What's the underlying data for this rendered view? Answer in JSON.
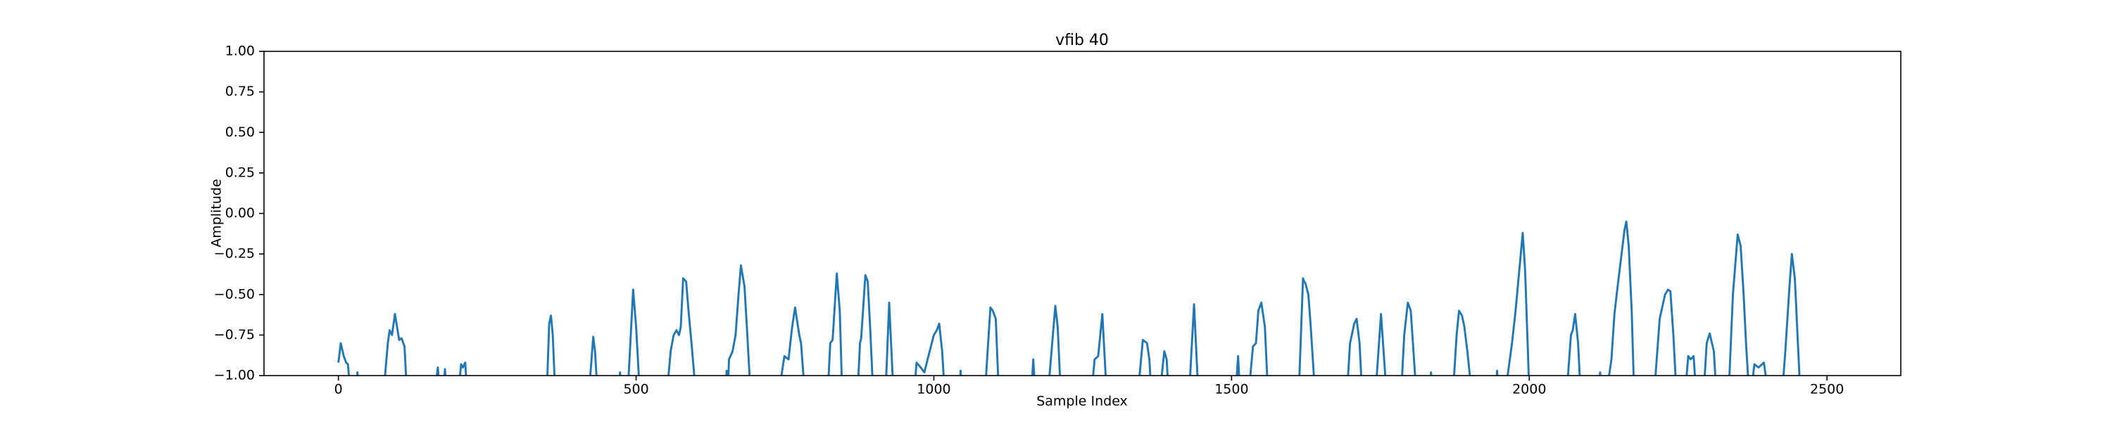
{
  "chart_data": {
    "type": "line",
    "title": "vfib 40",
    "x_label": "Sample Index",
    "y_label": "Amplitude",
    "color": "#1f77b4",
    "xlim": [
      -124.95,
      2623.95
    ],
    "xticks": [
      0,
      500,
      1000,
      1500,
      2000,
      2500
    ],
    "ylim": [
      -1,
      1
    ],
    "yticks": [
      {
        "value": -1,
        "label": "−1.00"
      },
      {
        "value": -0.75,
        "label": "−0.75"
      },
      {
        "value": -0.5,
        "label": "−0.50"
      },
      {
        "value": -0.25,
        "label": "−0.25"
      },
      {
        "value": 0,
        "label": "0.00"
      },
      {
        "value": 0.25,
        "label": "0.25"
      },
      {
        "value": 0.5,
        "label": "0.50"
      },
      {
        "value": 0.75,
        "label": "0.75"
      },
      {
        "value": 1,
        "label": "1.00"
      }
    ],
    "x": [
      0,
      4,
      9,
      13,
      16,
      20,
      30,
      32,
      34,
      76,
      83,
      86,
      90,
      95,
      102,
      106,
      111,
      115,
      162,
      167,
      170,
      176,
      179,
      181,
      202,
      206,
      209,
      213,
      216,
      350,
      354,
      357,
      360,
      364,
      421,
      428,
      431,
      435,
      471,
      473,
      475,
      486,
      495,
      500,
      506,
      552,
      558,
      563,
      568,
      572,
      575,
      577,
      579,
      584,
      588,
      593,
      600,
      650,
      652,
      654,
      656,
      662,
      667,
      672,
      676,
      682,
      686,
      692,
      740,
      749,
      756,
      762,
      767,
      774,
      777,
      783,
      822,
      826,
      830,
      837,
      842,
      846,
      872,
      876,
      878,
      885,
      889,
      893,
      898,
      919,
      925,
      932,
      967,
      971,
      978,
      984,
      993,
      1000,
      1005,
      1009,
      1011,
      1014,
      1018,
      1043,
      1045,
      1047,
      1086,
      1095,
      1099,
      1104,
      1109,
      1164,
      1167,
      1170,
      1192,
      1204,
      1208,
      1213,
      1265,
      1270,
      1276,
      1283,
      1290,
      1343,
      1351,
      1358,
      1362,
      1365,
      1380,
      1387,
      1391,
      1394,
      1429,
      1437,
      1444,
      1507,
      1511,
      1514,
      1529,
      1536,
      1541,
      1545,
      1550,
      1556,
      1561,
      1613,
      1620,
      1622,
      1624,
      1629,
      1633,
      1640,
      1694,
      1699,
      1706,
      1710,
      1715,
      1719,
      1742,
      1751,
      1760,
      1785,
      1790,
      1796,
      1801,
      1810,
      1833,
      1835,
      1837,
      1872,
      1878,
      1882,
      1887,
      1891,
      1896,
      1903,
      1944,
      1946,
      1948,
      1960,
      1971,
      1977,
      1989,
      1993,
      2000,
      2063,
      2070,
      2073,
      2077,
      2082,
      2086,
      2117,
      2119,
      2121,
      2130,
      2138,
      2143,
      2150,
      2160,
      2163,
      2167,
      2172,
      2176,
      2210,
      2219,
      2228,
      2233,
      2237,
      2242,
      2247,
      2262,
      2267,
      2271,
      2276,
      2280,
      2293,
      2298,
      2303,
      2310,
      2314,
      2335,
      2342,
      2350,
      2355,
      2360,
      2364,
      2369,
      2373,
      2378,
      2385,
      2394,
      2401,
      2425,
      2430,
      2437,
      2441,
      2446,
      2455,
      2499
    ],
    "values": [
      -0.92,
      -0.8,
      -0.88,
      -0.92,
      -0.93,
      -1.1,
      -1.1,
      -0.98,
      -1.1,
      -1.1,
      -0.8,
      -0.72,
      -0.75,
      -0.62,
      -0.78,
      -0.77,
      -0.82,
      -1.1,
      -1.1,
      -0.95,
      -1.1,
      -1.1,
      -0.96,
      -1.1,
      -1.1,
      -0.93,
      -0.95,
      -0.92,
      -1.1,
      -1.1,
      -0.68,
      -0.63,
      -0.75,
      -1.1,
      -1.1,
      -0.76,
      -0.85,
      -1.1,
      -1.1,
      -0.98,
      -1.1,
      -1.1,
      -0.47,
      -0.7,
      -1.1,
      -1.1,
      -0.85,
      -0.75,
      -0.72,
      -0.75,
      -0.7,
      -0.55,
      -0.4,
      -0.42,
      -0.6,
      -0.8,
      -1.1,
      -1.1,
      -0.97,
      -1.1,
      -0.9,
      -0.85,
      -0.75,
      -0.5,
      -0.32,
      -0.45,
      -0.7,
      -1.1,
      -1.1,
      -0.88,
      -0.9,
      -0.7,
      -0.58,
      -0.75,
      -0.8,
      -1.1,
      -1.1,
      -0.8,
      -0.78,
      -0.37,
      -0.6,
      -1.1,
      -1.1,
      -0.8,
      -0.77,
      -0.38,
      -0.42,
      -0.7,
      -1.1,
      -1.1,
      -0.55,
      -1.1,
      -1.1,
      -0.92,
      -0.95,
      -0.98,
      -0.85,
      -0.75,
      -0.72,
      -0.68,
      -0.75,
      -0.85,
      -1.1,
      -1.1,
      -0.97,
      -1.1,
      -1.1,
      -0.58,
      -0.6,
      -0.65,
      -1.1,
      -1.1,
      -0.9,
      -1.1,
      -1.1,
      -0.57,
      -0.7,
      -1.1,
      -1.1,
      -0.9,
      -0.88,
      -0.62,
      -1.1,
      -1.1,
      -0.78,
      -0.8,
      -0.9,
      -1.1,
      -1.1,
      -0.85,
      -0.9,
      -1.1,
      -1.1,
      -0.56,
      -1.1,
      -1.1,
      -0.88,
      -1.1,
      -1.1,
      -0.82,
      -0.8,
      -0.6,
      -0.55,
      -0.7,
      -1.1,
      -1.1,
      -0.4,
      -0.42,
      -0.43,
      -0.5,
      -0.7,
      -1.1,
      -1.1,
      -0.8,
      -0.68,
      -0.65,
      -0.8,
      -1.1,
      -1.1,
      -0.62,
      -1.1,
      -1.1,
      -0.75,
      -0.55,
      -0.6,
      -1.1,
      -1.1,
      -0.98,
      -1.1,
      -1.1,
      -0.75,
      -0.6,
      -0.63,
      -0.7,
      -0.85,
      -1.1,
      -1.1,
      -0.97,
      -1.1,
      -1.1,
      -0.8,
      -0.6,
      -0.12,
      -0.35,
      -1.1,
      -1.1,
      -0.75,
      -0.72,
      -0.62,
      -0.8,
      -1.1,
      -1.1,
      -0.98,
      -1.1,
      -1.1,
      -0.9,
      -0.62,
      -0.4,
      -0.1,
      -0.05,
      -0.2,
      -0.6,
      -1.1,
      -1.1,
      -0.65,
      -0.5,
      -0.47,
      -0.48,
      -0.75,
      -1.1,
      -1.1,
      -0.88,
      -0.9,
      -0.88,
      -1.1,
      -1.1,
      -0.8,
      -0.74,
      -0.85,
      -1.1,
      -1.1,
      -0.5,
      -0.13,
      -0.2,
      -0.5,
      -0.8,
      -1.1,
      -1.1,
      -0.93,
      -0.95,
      -0.92,
      -1.1,
      -1.1,
      -0.85,
      -0.45,
      -0.25,
      -0.4,
      -1.1,
      -1.1
    ]
  }
}
